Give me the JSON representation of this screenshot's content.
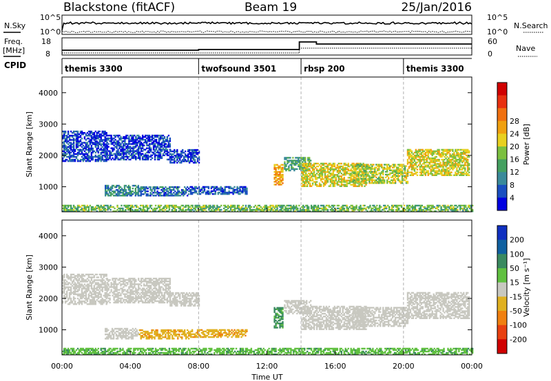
{
  "header": {
    "station": "Blackstone (fitACF)",
    "beam": "Beam 19",
    "date": "25/Jan/2016"
  },
  "nsky_panel": {
    "left_label": "N.Sky",
    "right_label": "N.Search",
    "left_ticks": [
      "10^5",
      "10^0"
    ],
    "right_ticks": [
      "10^5",
      "10^0"
    ]
  },
  "freq_panel": {
    "left_label_1": "Freq.",
    "left_label_2": "[MHz]",
    "right_label": "Nave",
    "left_ticks": [
      "18",
      "8"
    ],
    "right_ticks": [
      "60",
      "0"
    ]
  },
  "cpid": {
    "label": "CPID",
    "modes": [
      {
        "name": "themis 3300",
        "start": 0
      },
      {
        "name": "twofsound 3501",
        "start": 8
      },
      {
        "name": "rbsp 200",
        "start": 14
      },
      {
        "name": "themis 3300",
        "start": 20
      }
    ]
  },
  "chart_data": [
    {
      "type": "heatmap",
      "name": "power",
      "ylabel": "Slant Range [km]",
      "xlabel": "Time UT",
      "x_range_hours": [
        0,
        24
      ],
      "ylim": [
        200,
        4500
      ],
      "yticks": [
        "1000",
        "2000",
        "3000",
        "4000"
      ],
      "xticks": [
        "00:00",
        "04:00",
        "08:00",
        "12:00",
        "16:00",
        "20:00",
        "00:00"
      ],
      "colorbar": {
        "label": "Power [dB]",
        "ticks": [
          "4",
          "8",
          "12",
          "16",
          "20",
          "24",
          "28"
        ],
        "colors": [
          "#0000e0",
          "#1a4fc0",
          "#3a8a9a",
          "#44a060",
          "#7cc040",
          "#e8d020",
          "#f0a010",
          "#f07010",
          "#e83010",
          "#d00000"
        ]
      },
      "echo_regions": [
        {
          "t0": 0.0,
          "t1": 2.6,
          "r0": 1800,
          "r1": 2750,
          "value": 6
        },
        {
          "t0": 2.6,
          "t1": 6.3,
          "r0": 1850,
          "r1": 2650,
          "value": 6
        },
        {
          "t0": 6.3,
          "t1": 8.0,
          "r0": 1750,
          "r1": 2200,
          "value": 6
        },
        {
          "t0": 2.5,
          "t1": 4.5,
          "r0": 700,
          "r1": 1050,
          "value": 10
        },
        {
          "t0": 4.5,
          "t1": 7.5,
          "r0": 700,
          "r1": 1000,
          "value": 8
        },
        {
          "t0": 7.5,
          "t1": 10.8,
          "r0": 750,
          "r1": 1000,
          "value": 7
        },
        {
          "t0": 12.4,
          "t1": 12.9,
          "r0": 1050,
          "r1": 1700,
          "value": 22
        },
        {
          "t0": 13.0,
          "t1": 14.6,
          "r0": 1500,
          "r1": 1950,
          "value": 12
        },
        {
          "t0": 14.0,
          "t1": 17.8,
          "r0": 1000,
          "r1": 1750,
          "value": 18
        },
        {
          "t0": 17.0,
          "t1": 20.2,
          "r0": 1100,
          "r1": 1700,
          "value": 17
        },
        {
          "t0": 20.2,
          "t1": 23.8,
          "r0": 1350,
          "r1": 2200,
          "value": 18
        },
        {
          "t0": 0.0,
          "t1": 24.0,
          "r0": 200,
          "r1": 420,
          "value": 14
        }
      ]
    },
    {
      "type": "heatmap",
      "name": "velocity",
      "ylabel": "Slant Range [km]",
      "xlabel": "Time UT",
      "x_range_hours": [
        0,
        24
      ],
      "ylim": [
        200,
        4500
      ],
      "yticks": [
        "1000",
        "2000",
        "3000",
        "4000"
      ],
      "xticks": [
        "00:00",
        "04:00",
        "08:00",
        "12:00",
        "16:00",
        "20:00",
        "00:00"
      ],
      "colorbar": {
        "label": "Velocity [m s⁻¹]",
        "ticks": [
          "200",
          "100",
          "50",
          "15",
          "-15",
          "-50",
          "-100",
          "-200"
        ],
        "colors": [
          "#1030c0",
          "#1060a0",
          "#3a8a60",
          "#60c040",
          "#c8c8c0",
          "#e0b020",
          "#f08010",
          "#e84010",
          "#d00000"
        ]
      },
      "echo_regions": [
        {
          "t0": 0.0,
          "t1": 2.6,
          "r0": 1800,
          "r1": 2750,
          "value": 0
        },
        {
          "t0": 2.6,
          "t1": 6.3,
          "r0": 1850,
          "r1": 2650,
          "value": 0
        },
        {
          "t0": 6.3,
          "t1": 8.0,
          "r0": 1750,
          "r1": 2200,
          "value": 0
        },
        {
          "t0": 2.5,
          "t1": 4.5,
          "r0": 700,
          "r1": 1050,
          "value": 0
        },
        {
          "t0": 4.5,
          "t1": 7.5,
          "r0": 700,
          "r1": 1000,
          "value": -40
        },
        {
          "t0": 7.5,
          "t1": 10.8,
          "r0": 750,
          "r1": 1000,
          "value": -40
        },
        {
          "t0": 12.4,
          "t1": 12.9,
          "r0": 1050,
          "r1": 1700,
          "value": 60
        },
        {
          "t0": 13.0,
          "t1": 14.6,
          "r0": 1500,
          "r1": 1950,
          "value": 0
        },
        {
          "t0": 14.0,
          "t1": 17.8,
          "r0": 1000,
          "r1": 1750,
          "value": 0
        },
        {
          "t0": 17.0,
          "t1": 20.2,
          "r0": 1100,
          "r1": 1700,
          "value": 0
        },
        {
          "t0": 20.2,
          "t1": 23.8,
          "r0": 1350,
          "r1": 2200,
          "value": 0
        },
        {
          "t0": 0.0,
          "t1": 24.0,
          "r0": 200,
          "r1": 420,
          "value": 40
        }
      ]
    }
  ]
}
